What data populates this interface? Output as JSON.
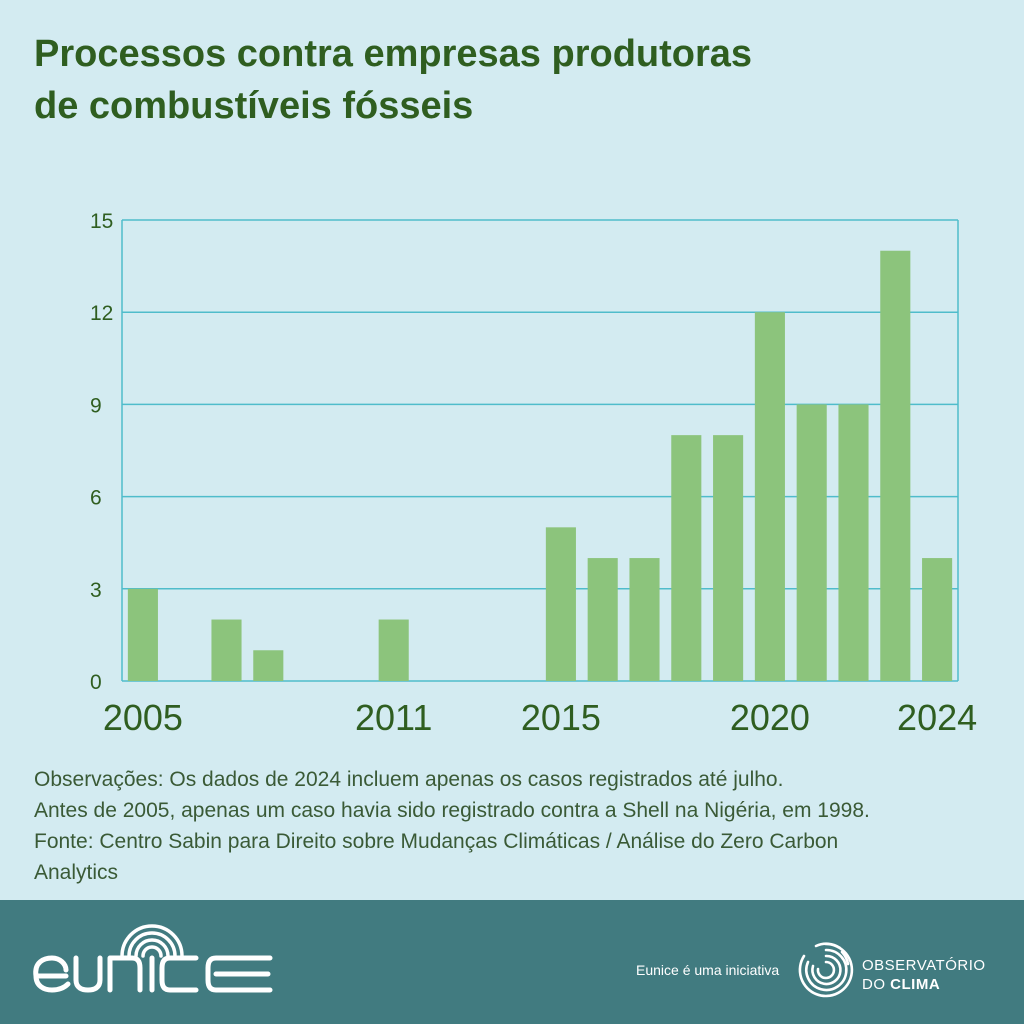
{
  "title": {
    "line1": "Processos contra empresas produtoras",
    "line2": "de combustíveis fósseis"
  },
  "chart_data": {
    "type": "bar",
    "categories": [
      "2005",
      "2006",
      "2007",
      "2008",
      "2009",
      "2010",
      "2011",
      "2012",
      "2013",
      "2014",
      "2015",
      "2016",
      "2017",
      "2018",
      "2019",
      "2020",
      "2021",
      "2022",
      "2023",
      "2024"
    ],
    "values": [
      3,
      0,
      2,
      1,
      0,
      0,
      2,
      0,
      0,
      0,
      5,
      4,
      4,
      8,
      8,
      12,
      9,
      9,
      14,
      4
    ],
    "x_tick_labels": [
      {
        "category": "2005",
        "label": "2005"
      },
      {
        "category": "2011",
        "label": "2011"
      },
      {
        "category": "2015",
        "label": "2015"
      },
      {
        "category": "2020",
        "label": "2020"
      },
      {
        "category": "2024",
        "label": "2024"
      }
    ],
    "y_ticks": [
      "0",
      "3",
      "6",
      "9",
      "12",
      "15"
    ],
    "ylim": [
      0,
      15
    ],
    "grid": true,
    "bar_color": "#8cc47c"
  },
  "notes": {
    "line1": "Observações: Os dados de 2024 incluem apenas os casos registrados até julho.",
    "line2": "Antes de 2005, apenas um caso havia sido registrado contra a Shell na Nigéria, em 1998.",
    "line3": "Fonte: Centro Sabin para Direito sobre Mudanças Climáticas / Análise do Zero Carbon",
    "line4": "Analytics"
  },
  "footer": {
    "brand": "eunice",
    "initiative": "Eunice é uma iniciativa",
    "org_line1": "OBSERVATÓRIO",
    "org_line2_prefix": "DO ",
    "org_line2_bold": "CLIMA",
    "logo_icon": "spiral-icon"
  }
}
